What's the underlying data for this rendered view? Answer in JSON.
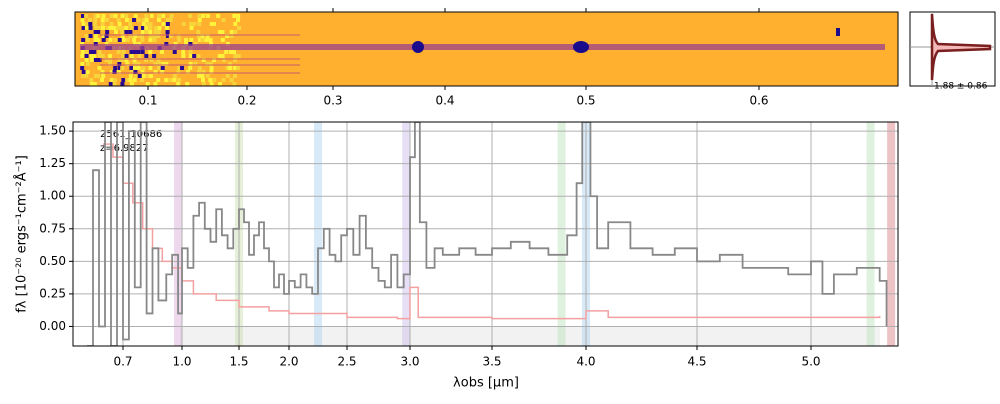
{
  "chart_data": {
    "type": "line",
    "annotations": [
      "2561_10686",
      "z=6.9827"
    ],
    "xlabel": "λobs [μm]",
    "ylabel": "fλ [10⁻²⁰ ergs⁻¹cm⁻²Å⁻¹]",
    "xlim": [
      0.45,
      5.38
    ],
    "ylim": [
      -0.15,
      1.57
    ],
    "xticks": [
      0.7,
      {
        "value": 1,
        "label": "1.0"
      },
      1.5,
      {
        "value": 2,
        "label": "2.0"
      },
      2.5,
      {
        "value": 3,
        "label": "3.0"
      },
      3.5,
      {
        "value": 4,
        "label": "4.0"
      },
      4.5,
      {
        "value": 5,
        "label": "5.0"
      }
    ],
    "yticks": [
      {
        "value": 0,
        "label": "0.00"
      },
      {
        "value": 0.25,
        "label": "0.25"
      },
      {
        "value": 0.5,
        "label": "0.50"
      },
      {
        "value": 0.75,
        "label": "0.75"
      },
      {
        "value": 1,
        "label": "1.00"
      },
      {
        "value": 1.25,
        "label": "1.25"
      },
      {
        "value": 1.5,
        "label": "1.50"
      }
    ],
    "grid": true,
    "series": [
      {
        "color": "#888888",
        "x": [
          0.52,
          0.55,
          0.58,
          0.61,
          0.64,
          0.67,
          0.7,
          0.73,
          0.76,
          0.79,
          0.82,
          0.85,
          0.88,
          0.92,
          0.95,
          0.98,
          1.0,
          1.05,
          1.1,
          1.15,
          1.2,
          1.25,
          1.3,
          1.35,
          1.4,
          1.45,
          1.5,
          1.55,
          1.6,
          1.65,
          1.7,
          1.75,
          1.8,
          1.85,
          1.9,
          1.95,
          2.0,
          2.05,
          2.1,
          2.15,
          2.2,
          2.25,
          2.3,
          2.35,
          2.4,
          2.45,
          2.5,
          2.55,
          2.6,
          2.65,
          2.7,
          2.75,
          2.8,
          2.85,
          2.9,
          2.95,
          3.0,
          3.03,
          3.06,
          3.1,
          3.15,
          3.2,
          3.3,
          3.4,
          3.5,
          3.6,
          3.7,
          3.8,
          3.9,
          3.95,
          3.98,
          4.02,
          4.05,
          4.1,
          4.2,
          4.3,
          4.4,
          4.5,
          4.6,
          4.7,
          4.8,
          4.9,
          5.0,
          5.05,
          5.1,
          5.2,
          5.3,
          5.33
        ],
        "values": [
          -0.15,
          1.2,
          0.0,
          1.57,
          -0.15,
          1.57,
          -0.1,
          1.5,
          0.3,
          1.57,
          0.1,
          0.6,
          0.2,
          0.4,
          0.55,
          0.1,
          0.6,
          0.45,
          0.85,
          0.95,
          0.75,
          0.65,
          0.9,
          0.7,
          0.6,
          0.75,
          0.9,
          0.8,
          0.55,
          0.7,
          0.8,
          0.6,
          0.5,
          0.3,
          0.4,
          0.25,
          0.35,
          0.3,
          0.4,
          0.3,
          0.25,
          0.6,
          0.75,
          0.55,
          0.5,
          0.7,
          0.75,
          0.55,
          0.85,
          0.6,
          0.45,
          0.35,
          0.3,
          0.55,
          0.3,
          0.4,
          1.3,
          1.57,
          0.8,
          0.45,
          0.6,
          0.55,
          0.6,
          0.55,
          0.6,
          0.65,
          0.6,
          0.55,
          0.7,
          1.1,
          1.57,
          1.0,
          0.6,
          0.8,
          0.6,
          0.55,
          0.6,
          0.5,
          0.55,
          0.45,
          0.45,
          0.4,
          0.5,
          0.25,
          0.4,
          0.45,
          0.35,
          0.0
        ]
      },
      {
        "color": "#f4a0a0",
        "x": [
          0.6,
          0.65,
          0.7,
          0.75,
          0.8,
          0.85,
          0.9,
          0.95,
          1.0,
          1.1,
          1.3,
          1.5,
          1.8,
          2.0,
          2.5,
          2.9,
          3.0,
          3.05,
          3.5,
          3.9,
          4.0,
          4.1,
          4.5,
          5.0,
          5.3
        ],
        "values": [
          1.4,
          1.3,
          1.1,
          0.95,
          0.75,
          0.6,
          0.5,
          0.45,
          0.35,
          0.25,
          0.2,
          0.15,
          0.12,
          0.1,
          0.07,
          0.06,
          0.3,
          0.07,
          0.06,
          0.06,
          0.12,
          0.07,
          0.07,
          0.07,
          0.08
        ]
      }
    ],
    "line_markers": [
      {
        "x": 0.98,
        "color": "#d8a8d8"
      },
      {
        "x": 1.5,
        "color": "#c8dca8"
      },
      {
        "x": 2.25,
        "color": "#a8d0f0"
      },
      {
        "x": 2.97,
        "color": "#c8b8e8"
      },
      {
        "x": 3.87,
        "color": "#b8e0b8"
      },
      {
        "x": 4.0,
        "color": "#a8d0f0"
      },
      {
        "x": 5.26,
        "color": "#b8e0b8"
      },
      {
        "x": 5.35,
        "color": "#d87a80"
      }
    ],
    "image_xticks": [
      0.1,
      0.2,
      0.3,
      0.4,
      0.5,
      0.6
    ],
    "profile_label": "1.88 ± 0.86"
  }
}
